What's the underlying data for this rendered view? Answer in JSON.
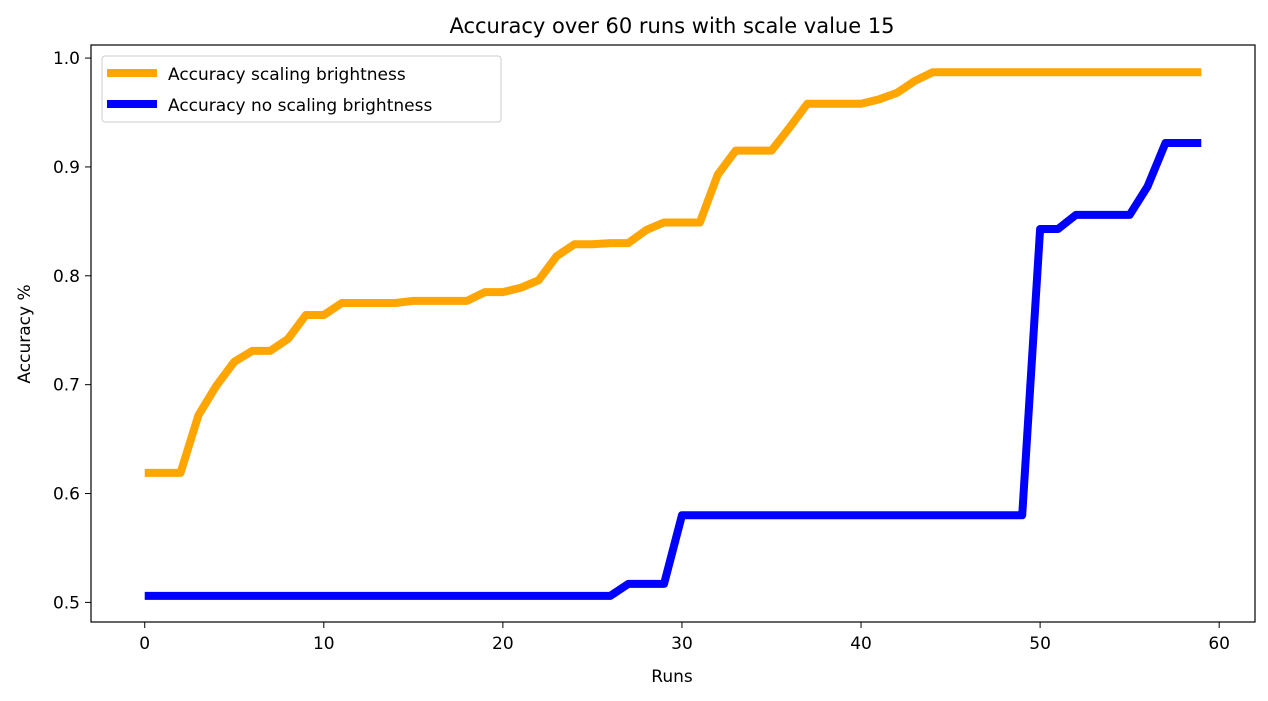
{
  "chart_data": {
    "type": "line",
    "title": "Accuracy over 60 runs with scale value 15",
    "xlabel": "Runs",
    "ylabel": "Accuracy %",
    "xlim": [
      -3.0,
      62.0
    ],
    "ylim": [
      0.482,
      1.012
    ],
    "xticks": [
      0,
      10,
      20,
      30,
      40,
      50,
      60
    ],
    "xtick_labels": [
      "0",
      "10",
      "20",
      "30",
      "40",
      "50",
      "60"
    ],
    "yticks": [
      0.5,
      0.6,
      0.7,
      0.8,
      0.9,
      1.0
    ],
    "ytick_labels": [
      "0.5",
      "0.6",
      "0.7",
      "0.8",
      "0.9",
      "1.0"
    ],
    "grid": false,
    "legend_position": "upper-left",
    "x": [
      0,
      1,
      2,
      3,
      4,
      5,
      6,
      7,
      8,
      9,
      10,
      11,
      12,
      13,
      14,
      15,
      16,
      17,
      18,
      19,
      20,
      21,
      22,
      23,
      24,
      25,
      26,
      27,
      28,
      29,
      30,
      31,
      32,
      33,
      34,
      35,
      36,
      37,
      38,
      39,
      40,
      41,
      42,
      43,
      44,
      45,
      46,
      47,
      48,
      49,
      50,
      51,
      52,
      53,
      54,
      55,
      56,
      57,
      58,
      59
    ],
    "series": [
      {
        "name": "Accuracy scaling brightness",
        "color": "#FFA500",
        "values": [
          0.619,
          0.619,
          0.619,
          0.672,
          0.699,
          0.721,
          0.731,
          0.731,
          0.742,
          0.764,
          0.764,
          0.775,
          0.775,
          0.775,
          0.775,
          0.777,
          0.777,
          0.777,
          0.777,
          0.785,
          0.785,
          0.789,
          0.796,
          0.818,
          0.829,
          0.829,
          0.83,
          0.83,
          0.842,
          0.849,
          0.849,
          0.849,
          0.893,
          0.915,
          0.915,
          0.915,
          0.936,
          0.958,
          0.958,
          0.958,
          0.958,
          0.962,
          0.968,
          0.979,
          0.987,
          0.987,
          0.987,
          0.987,
          0.987,
          0.987,
          0.987,
          0.987,
          0.987,
          0.987,
          0.987,
          0.987,
          0.987,
          0.987,
          0.987,
          0.987
        ]
      },
      {
        "name": "Accuracy no scaling brightness",
        "color": "#0000FF",
        "values": [
          0.506,
          0.506,
          0.506,
          0.506,
          0.506,
          0.506,
          0.506,
          0.506,
          0.506,
          0.506,
          0.506,
          0.506,
          0.506,
          0.506,
          0.506,
          0.506,
          0.506,
          0.506,
          0.506,
          0.506,
          0.506,
          0.506,
          0.506,
          0.506,
          0.506,
          0.506,
          0.506,
          0.517,
          0.517,
          0.517,
          0.58,
          0.58,
          0.58,
          0.58,
          0.58,
          0.58,
          0.58,
          0.58,
          0.58,
          0.58,
          0.58,
          0.58,
          0.58,
          0.58,
          0.58,
          0.58,
          0.58,
          0.58,
          0.58,
          0.58,
          0.843,
          0.843,
          0.856,
          0.856,
          0.856,
          0.856,
          0.882,
          0.922,
          0.922,
          0.922
        ]
      }
    ]
  }
}
